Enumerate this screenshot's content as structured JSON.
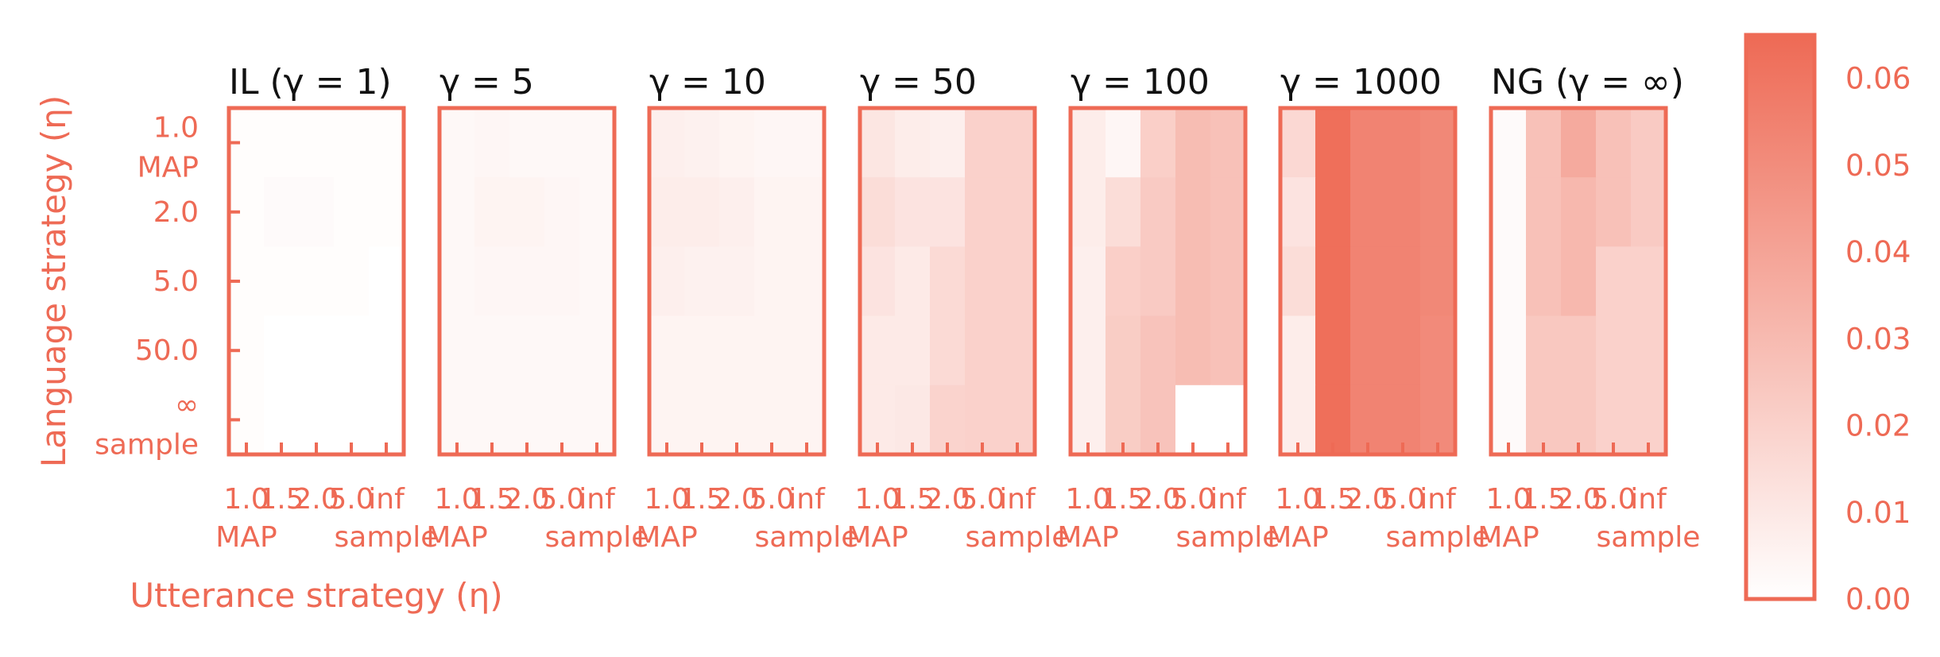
{
  "chart_data": {
    "type": "heatmap",
    "colormap": {
      "low": "#ffffff",
      "high": "#ee6a55",
      "frame": "#ee6a55"
    },
    "xlabel": "Utterance strategy (η)",
    "ylabel": "Language strategy (η)",
    "x_ticks": [
      [
        "1.0",
        "MAP"
      ],
      [
        "1.5"
      ],
      [
        "2.0"
      ],
      [
        "5.0"
      ],
      [
        "inf",
        "sample"
      ]
    ],
    "y_ticks": [
      [
        "1.0",
        "MAP"
      ],
      [
        "2.0"
      ],
      [
        "5.0"
      ],
      [
        "50.0"
      ],
      [
        "∞",
        "sample"
      ]
    ],
    "colorbar": {
      "range": [
        0,
        0.065
      ],
      "ticks": [
        "0.00",
        "0.01",
        "0.02",
        "0.03",
        "0.04",
        "0.05",
        "0.06"
      ]
    },
    "panels": [
      {
        "title": "IL (γ = 1)",
        "values": [
          [
            0.001,
            0.001,
            0.001,
            0.001,
            0.001
          ],
          [
            0.001,
            0.002,
            0.002,
            0.001,
            0.001
          ],
          [
            0.001,
            0.001,
            0.001,
            0.001,
            0.0
          ],
          [
            0.001,
            0.0,
            0.0,
            0.0,
            0.0
          ],
          [
            0.001,
            0.0,
            0.0,
            0.0,
            0.0
          ]
        ]
      },
      {
        "title": "γ = 5",
        "values": [
          [
            0.003,
            0.004,
            0.003,
            0.003,
            0.003
          ],
          [
            0.003,
            0.005,
            0.005,
            0.004,
            0.003
          ],
          [
            0.003,
            0.004,
            0.004,
            0.004,
            0.003
          ],
          [
            0.003,
            0.003,
            0.003,
            0.003,
            0.003
          ],
          [
            0.003,
            0.003,
            0.003,
            0.003,
            0.003
          ]
        ]
      },
      {
        "title": "γ = 10",
        "values": [
          [
            0.007,
            0.006,
            0.005,
            0.004,
            0.004
          ],
          [
            0.008,
            0.008,
            0.007,
            0.005,
            0.005
          ],
          [
            0.007,
            0.006,
            0.006,
            0.005,
            0.005
          ],
          [
            0.005,
            0.005,
            0.005,
            0.005,
            0.005
          ],
          [
            0.005,
            0.005,
            0.005,
            0.005,
            0.005
          ]
        ]
      },
      {
        "title": "γ = 50",
        "values": [
          [
            0.011,
            0.008,
            0.007,
            0.02,
            0.02
          ],
          [
            0.015,
            0.012,
            0.012,
            0.02,
            0.02
          ],
          [
            0.012,
            0.009,
            0.016,
            0.02,
            0.02
          ],
          [
            0.009,
            0.009,
            0.016,
            0.02,
            0.02
          ],
          [
            0.009,
            0.01,
            0.019,
            0.02,
            0.02
          ]
        ]
      },
      {
        "title": "γ = 100",
        "values": [
          [
            0.008,
            0.004,
            0.021,
            0.029,
            0.027
          ],
          [
            0.008,
            0.015,
            0.023,
            0.029,
            0.027
          ],
          [
            0.007,
            0.021,
            0.023,
            0.029,
            0.027
          ],
          [
            0.007,
            0.022,
            0.026,
            0.029,
            0.027
          ],
          [
            0.007,
            0.022,
            0.026,
            0.0,
            0.0
          ]
        ]
      },
      {
        "title": "γ = 1000",
        "values": [
          [
            0.017,
            0.063,
            0.054,
            0.054,
            0.052
          ],
          [
            0.012,
            0.063,
            0.054,
            0.054,
            0.052
          ],
          [
            0.015,
            0.063,
            0.054,
            0.054,
            0.052
          ],
          [
            0.008,
            0.063,
            0.054,
            0.054,
            0.051
          ],
          [
            0.008,
            0.063,
            0.054,
            0.054,
            0.051
          ]
        ]
      },
      {
        "title": "NG (γ = ∞)",
        "values": [
          [
            0.002,
            0.027,
            0.037,
            0.027,
            0.023
          ],
          [
            0.002,
            0.027,
            0.031,
            0.027,
            0.023
          ],
          [
            0.002,
            0.027,
            0.031,
            0.02,
            0.02
          ],
          [
            0.002,
            0.024,
            0.024,
            0.02,
            0.02
          ],
          [
            0.002,
            0.024,
            0.024,
            0.02,
            0.02
          ]
        ]
      }
    ]
  }
}
